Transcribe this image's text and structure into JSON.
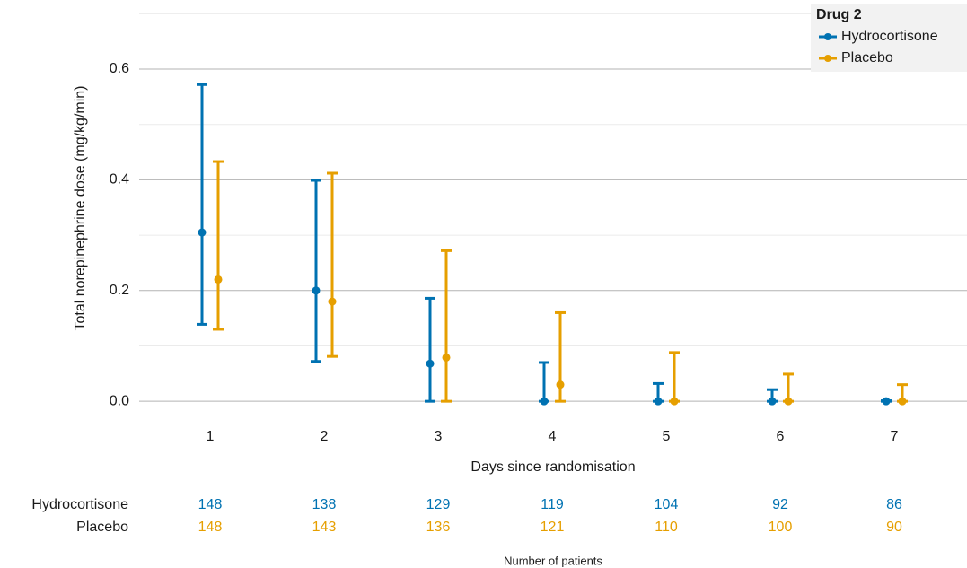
{
  "chart_data": {
    "type": "errorbar",
    "x_label": "Days since randomisation",
    "y_label": "Total norepinephrine dose (mg/kg/min)",
    "categories": [
      "1",
      "2",
      "3",
      "4",
      "5",
      "6",
      "7"
    ],
    "ylim": [
      -0.05,
      0.72
    ],
    "yticks": [
      {
        "value": 0,
        "label": "0.0"
      },
      0.2,
      0.4,
      0.6
    ],
    "minor_yticks": [
      0.1,
      0.3,
      0.5,
      0.7
    ],
    "grid": true,
    "legend_title": "Drug 2",
    "legend_position": "top-right",
    "series": [
      {
        "name": "Hydrocortisone",
        "color": "#0072B2",
        "values": [
          0.305,
          0.2,
          0.068,
          0,
          0,
          0,
          0
        ],
        "lower": [
          0.139,
          0.072,
          0,
          0,
          0,
          0,
          0
        ],
        "upper": [
          0.572,
          0.399,
          0.186,
          0.07,
          0.032,
          0.021,
          0.001
        ]
      },
      {
        "name": "Placebo",
        "color": "#E69F00",
        "values": [
          0.22,
          0.18,
          0.079,
          0.03,
          0,
          0,
          0
        ],
        "lower": [
          0.13,
          0.081,
          0,
          0,
          0,
          0,
          0
        ],
        "upper": [
          0.433,
          0.412,
          0.272,
          0.16,
          0.088,
          0.049,
          0.03
        ]
      }
    ],
    "risk_table": {
      "title": "Number of patients",
      "rows": [
        {
          "name": "Hydrocortisone",
          "values": [
            148,
            138,
            129,
            119,
            104,
            92,
            86
          ]
        },
        {
          "name": "Placebo",
          "values": [
            148,
            143,
            136,
            121,
            110,
            100,
            90
          ]
        }
      ]
    }
  }
}
